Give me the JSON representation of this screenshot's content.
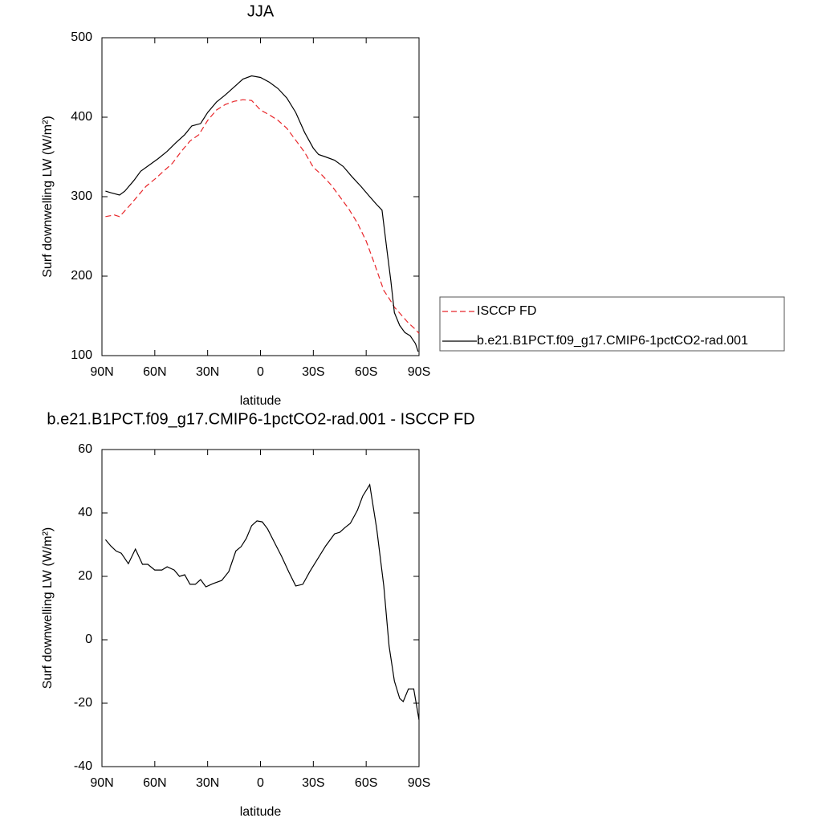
{
  "chart_data": [
    {
      "type": "line",
      "title": "JJA",
      "xlabel": "latitude",
      "ylabel": "Surf downwelling LW (W/m²)",
      "xlim": [
        90,
        -90
      ],
      "ylim": [
        100,
        500
      ],
      "xticks": [
        {
          "value": 90,
          "label": "90N"
        },
        {
          "value": 60,
          "label": "60N"
        },
        {
          "value": 30,
          "label": "30N"
        },
        0,
        {
          "value": -30,
          "label": "30S"
        },
        {
          "value": -60,
          "label": "60S"
        },
        {
          "value": -90,
          "label": "90S"
        }
      ],
      "yticks": [
        100,
        200,
        300,
        400,
        500
      ],
      "series": [
        {
          "name": "ISCCP FD",
          "color": "#e8262a",
          "dash": true,
          "x": [
            88,
            83,
            80,
            75,
            70,
            65,
            60,
            55,
            50,
            45,
            40,
            35,
            30,
            25,
            20,
            15,
            10,
            5,
            0,
            -5,
            -10,
            -15,
            -20,
            -25,
            -30,
            -35,
            -40,
            -45,
            -50,
            -55,
            -60,
            -65,
            -70,
            -73,
            -76,
            -80,
            -84,
            -88,
            -90
          ],
          "values": [
            275,
            277,
            275,
            287,
            300,
            313,
            322,
            332,
            342,
            357,
            370,
            378,
            396,
            409,
            416,
            420,
            422,
            421,
            409,
            403,
            396,
            386,
            371,
            356,
            337,
            327,
            315,
            300,
            285,
            267,
            244,
            214,
            182,
            172,
            161,
            151,
            141,
            133,
            128
          ]
        },
        {
          "name": "b.e21.B1PCT.f09_g17.CMIP6-1pctCO2-rad.001",
          "color": "#000000",
          "dash": false,
          "x": [
            88,
            85,
            80,
            77,
            72,
            68,
            63,
            58,
            53,
            48,
            43,
            39,
            34,
            30,
            25,
            20,
            15,
            10,
            5,
            0,
            -5,
            -10,
            -15,
            -20,
            -25,
            -30,
            -33,
            -37,
            -42,
            -47,
            -52,
            -57,
            -62,
            -66,
            -69,
            -72,
            -74,
            -76,
            -79,
            -82,
            -85,
            -88,
            -89.5
          ],
          "values": [
            307,
            305,
            302,
            307,
            320,
            332,
            340,
            348,
            357,
            368,
            378,
            389,
            392,
            406,
            419,
            428,
            438,
            448,
            452,
            450,
            444,
            436,
            424,
            406,
            381,
            361,
            353,
            350,
            346,
            338,
            325,
            313,
            300,
            290,
            283,
            229,
            194,
            154,
            138,
            129,
            125,
            115,
            105
          ]
        }
      ]
    },
    {
      "type": "line",
      "title": "b.e21.B1PCT.f09_g17.CMIP6-1pctCO2-rad.001 - ISCCP FD",
      "xlabel": "latitude",
      "ylabel": "Surf downwelling LW (W/m²)",
      "xlim": [
        90,
        -90
      ],
      "ylim": [
        -40,
        60
      ],
      "xticks": [
        {
          "value": 90,
          "label": "90N"
        },
        {
          "value": 60,
          "label": "60N"
        },
        {
          "value": 30,
          "label": "30N"
        },
        0,
        {
          "value": -30,
          "label": "30S"
        },
        {
          "value": -60,
          "label": "60S"
        },
        {
          "value": -90,
          "label": "90S"
        }
      ],
      "yticks": [
        -40,
        -20,
        0,
        20,
        40,
        60
      ],
      "color": "#000000",
      "x": [
        88,
        85,
        82,
        79,
        75,
        71,
        67,
        64,
        60,
        56,
        53,
        49,
        46,
        43,
        40,
        37,
        34,
        31,
        27,
        22,
        18,
        14,
        11,
        8,
        5,
        2,
        -1,
        -4,
        -8,
        -12,
        -16,
        -20,
        -24,
        -28,
        -33,
        -37,
        -42,
        -45,
        -48,
        -51,
        -55,
        -58,
        -62,
        -66,
        -70,
        -73,
        -76,
        -79,
        -81,
        -84,
        -87,
        -90
      ],
      "values": [
        31.6,
        29.6,
        28,
        27.3,
        24,
        28.6,
        23.8,
        23.8,
        22,
        22,
        23,
        22,
        20,
        20.5,
        17.5,
        17.5,
        19,
        16.7,
        17.7,
        18.7,
        21.5,
        28,
        29.4,
        32,
        36,
        37.5,
        37.2,
        35,
        30.6,
        26.3,
        21.5,
        17,
        17.5,
        21.5,
        26,
        29.6,
        33.4,
        33.9,
        35.4,
        36.7,
        40.8,
        45.3,
        48.9,
        35,
        17,
        -2,
        -13,
        -18.5,
        -19.5,
        -15.5,
        -15.5,
        -25.3
      ]
    }
  ]
}
